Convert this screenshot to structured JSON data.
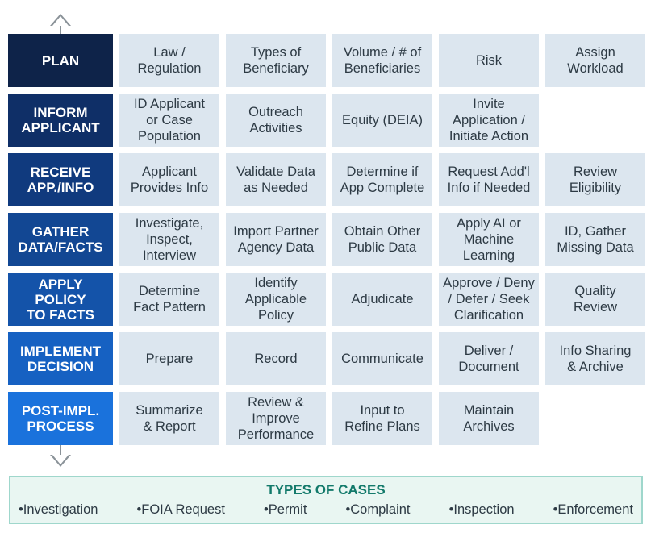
{
  "stages": [
    {
      "label": "PLAN",
      "color": "#0e2349",
      "cells": [
        "Law /\nRegulation",
        "Types of\nBeneficiary",
        "Volume / # of\nBeneficiaries",
        "Risk",
        "Assign\nWorkload"
      ]
    },
    {
      "label": "INFORM\nAPPLICANT",
      "color": "#0f2f67",
      "cells": [
        "ID Applicant\nor Case\nPopulation",
        "Outreach\nActivities",
        "Equity (DEIA)",
        "Invite\nApplication /\nInitiate Action",
        ""
      ]
    },
    {
      "label": "RECEIVE\nAPP./INFO",
      "color": "#103a7e",
      "cells": [
        "Applicant\nProvides Info",
        "Validate Data\nas Needed",
        "Determine if\nApp Complete",
        "Request Add'l\nInfo if Needed",
        "Review\nEligibility"
      ]
    },
    {
      "label": "GATHER\nDATA/FACTS",
      "color": "#124793",
      "cells": [
        "Investigate,\nInspect,\nInterview",
        "Import Partner\nAgency Data",
        "Obtain Other\nPublic Data",
        "Apply AI or\nMachine\nLearning",
        "ID, Gather\nMissing Data"
      ]
    },
    {
      "label": "APPLY\nPOLICY\nTO FACTS",
      "color": "#1453a9",
      "cells": [
        "Determine\nFact Pattern",
        "Identify\nApplicable\nPolicy",
        "Adjudicate",
        "Approve / Deny\n/ Defer / Seek\nClarification",
        "Quality\nReview"
      ]
    },
    {
      "label": "IMPLEMENT\nDECISION",
      "color": "#1661c2",
      "cells": [
        "Prepare",
        "Record",
        "Communicate",
        "Deliver /\nDocument",
        "Info Sharing\n& Archive"
      ]
    },
    {
      "label": "POST-IMPL.\nPROCESS",
      "color": "#1a72dc",
      "cells": [
        "Summarize\n& Report",
        "Review &\nImprove\nPerformance",
        "Input to\nRefine Plans",
        "Maintain\nArchives",
        ""
      ]
    }
  ],
  "cases": {
    "title": "TYPES OF CASES",
    "items": [
      "Investigation",
      "FOIA Request",
      "Permit",
      "Complaint",
      "Inspection",
      "Enforcement"
    ]
  },
  "colors": {
    "cell_bg": "#dce6ef",
    "arrow": "#8a9298",
    "cases_border": "#9fd7cc",
    "cases_title": "#137a6b"
  }
}
